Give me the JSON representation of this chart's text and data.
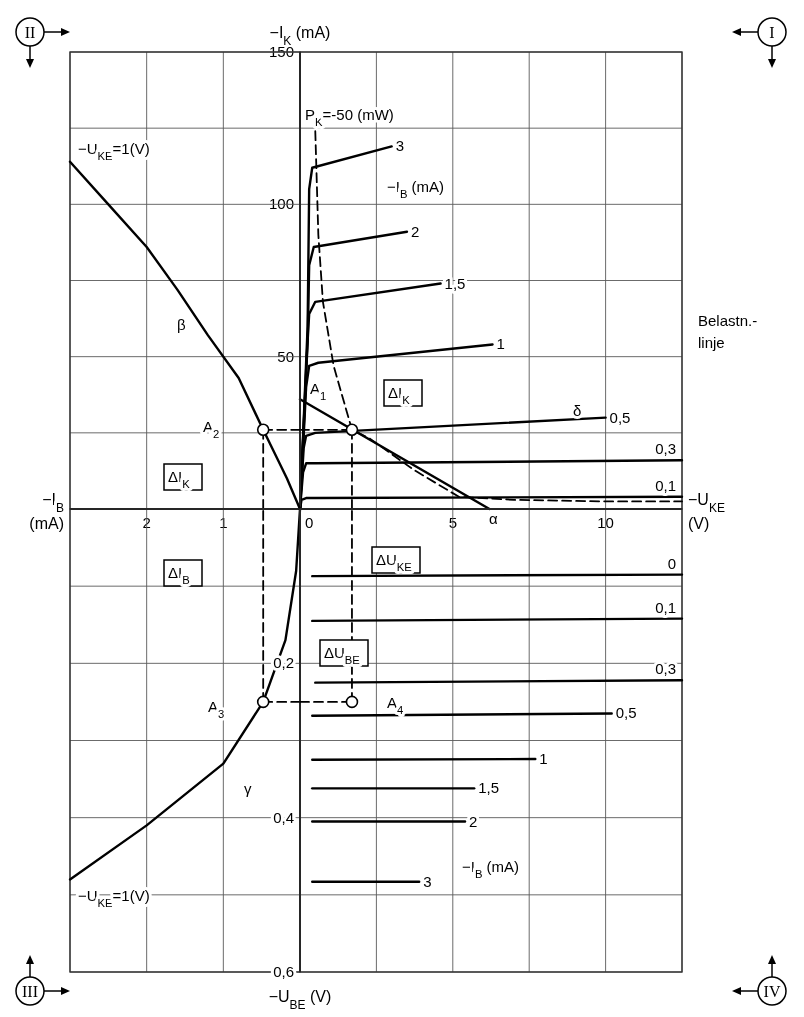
{
  "chart_data": [
    {
      "type": "line",
      "xlabel": "−U$_{KE}$ (V)",
      "ylabel": "−I$_{K}$ (mA)",
      "xlim": [
        0,
        12.5
      ],
      "ylim": [
        0,
        150
      ],
      "xticks": [
        0,
        {
          "value": 2.5,
          "label": null
        },
        5,
        {
          "value": 7.5,
          "label": null
        },
        10,
        {
          "value": 12.5,
          "label": null
        }
      ],
      "yticks": [
        {
          "value": 25,
          "label": null
        },
        50,
        {
          "value": 75,
          "label": null
        },
        100,
        {
          "value": 125,
          "label": null
        },
        150
      ],
      "grid": true,
      "series": [
        {
          "name": "3",
          "color": "#000000",
          "x": [
            0,
            0.25,
            0.3,
            0.4,
            3
          ],
          "values": [
            0,
            60,
            105,
            112,
            119
          ]
        },
        {
          "name": "2",
          "color": "#000000",
          "x": [
            0,
            0.25,
            0.3,
            0.45,
            3.5
          ],
          "values": [
            0,
            55,
            80,
            86,
            91
          ]
        },
        {
          "name": "1,5",
          "color": "#000000",
          "x": [
            0,
            0.22,
            0.3,
            0.5,
            4.6
          ],
          "values": [
            0,
            50,
            64,
            68,
            74
          ]
        },
        {
          "name": "1",
          "color": "#000000",
          "x": [
            0,
            0.2,
            0.3,
            0.6,
            6.3
          ],
          "values": [
            0,
            40,
            47,
            48,
            54
          ]
        },
        {
          "name": "0,5",
          "color": "#000000",
          "x": [
            0,
            0.12,
            0.2,
            0.5,
            10
          ],
          "values": [
            0,
            20,
            24,
            25,
            30
          ]
        },
        {
          "name": "0,3",
          "color": "#000000",
          "x": [
            0,
            0.1,
            0.2,
            0.5,
            12.5
          ],
          "values": [
            0,
            12,
            15,
            15,
            16
          ]
        },
        {
          "name": "0,1",
          "color": "#000000",
          "x": [
            0,
            0.05,
            0.2,
            0.5,
            12.5
          ],
          "values": [
            0,
            3,
            3.6,
            3.6,
            4
          ]
        },
        {
          "color": "#000000",
          "x": [
            0,
            6.2
          ],
          "values": [
            36,
            0
          ]
        },
        {
          "color": "#000000",
          "line_style": "dashed",
          "x": [
            0.5,
            0.6,
            0.75,
            1.1,
            1.7,
            2.3,
            3.7,
            5.2,
            7,
            10,
            12.5
          ],
          "values": [
            124,
            90,
            68,
            47,
            26,
            23,
            13,
            4,
            3,
            2.5,
            2.5
          ]
        },
        {
          "color": "#000000",
          "line_style": "dashed",
          "x": [
            0,
            1.7
          ],
          "values": [
            26,
            26
          ]
        },
        {
          "color": "#000000",
          "line_style": "dashed",
          "x": [
            1.7,
            1.7
          ],
          "values": [
            26,
            0
          ]
        },
        {
          "type": "scatter",
          "marker": "circle",
          "color": "#000000",
          "x": [
            1.7
          ],
          "values": [
            26
          ]
        }
      ],
      "annotations": [
        "I",
        "P$_{K}$=-50 (mW)",
        "−I$_{B}$ (mA)",
        "Belastn.-linje",
        "A$_{1}$",
        "ΔI$_{K}$",
        "δ",
        "α"
      ]
    },
    {
      "type": "line",
      "xlabel": "−I$_{B}$ (mA)",
      "xlim": [
        3,
        0
      ],
      "ylim": [
        0,
        150
      ],
      "xticks": [
        {
          "value": 3,
          "label": null
        },
        2,
        1
      ],
      "yticks": [
        {
          "value": 25,
          "label": null
        },
        {
          "value": 50,
          "label": null
        },
        {
          "value": 75,
          "label": null
        },
        {
          "value": 100,
          "label": null
        },
        {
          "value": 125,
          "label": null
        },
        {
          "value": 150,
          "label": null
        }
      ],
      "grid": true,
      "tick_labels": "x",
      "series": [
        {
          "name": "−U$_{KE}$=1(V)",
          "color": "#000000",
          "x": [
            0,
            0.17,
            0.48,
            0.8,
            1.2,
            1.6,
            2,
            2.5,
            3
          ],
          "values": [
            0,
            10,
            26,
            43,
            57,
            72,
            86,
            100,
            114
          ]
        },
        {
          "color": "#000000",
          "line_style": "dashed",
          "x": [
            0.48,
            0
          ],
          "values": [
            26,
            26
          ]
        },
        {
          "color": "#000000",
          "line_style": "dashed",
          "x": [
            0.48,
            0.48
          ],
          "values": [
            26,
            0
          ]
        },
        {
          "type": "scatter",
          "marker": "circle",
          "color": "#000000",
          "x": [
            0.48
          ],
          "values": [
            26
          ]
        }
      ],
      "annotations": [
        "II",
        "A$_{2}$",
        "ΔI$_{K}$",
        "β"
      ]
    },
    {
      "type": "line",
      "ylabel": "−U$_{BE}$ (V)",
      "xlim": [
        3,
        0
      ],
      "ylim": [
        0.6,
        0
      ],
      "xticks": [
        {
          "value": 3,
          "label": null
        },
        {
          "value": 2,
          "label": null
        },
        {
          "value": 1,
          "label": null
        }
      ],
      "yticks": [
        {
          "value": 0.1,
          "label": null
        },
        {
          "value": 0.2,
          "label": "0,2"
        },
        {
          "value": 0.3,
          "label": null
        },
        {
          "value": 0.4,
          "label": "0,4"
        },
        {
          "value": 0.5,
          "label": null
        },
        {
          "value": 0.6,
          "label": "0,6"
        }
      ],
      "grid": true,
      "tick_labels": "y",
      "series": [
        {
          "name": "−U$_{KE}$=1(V)",
          "color": "#000000",
          "x": [
            0,
            0.05,
            0.19,
            0.48,
            1,
            2,
            3
          ],
          "values": [
            0,
            0.08,
            0.17,
            0.25,
            0.33,
            0.41,
            0.48
          ]
        },
        {
          "color": "#000000",
          "line_style": "dashed",
          "x": [
            0.48,
            0
          ],
          "values": [
            0.25,
            0.25
          ]
        },
        {
          "color": "#000000",
          "line_style": "dashed",
          "x": [
            0.48,
            0.48
          ],
          "values": [
            0.25,
            0
          ]
        },
        {
          "type": "scatter",
          "marker": "circle",
          "color": "#000000",
          "x": [
            0.48
          ],
          "values": [
            0.25
          ]
        }
      ],
      "annotations": [
        "III",
        "ΔI$_{B}$",
        "A$_{3}$",
        "γ"
      ]
    },
    {
      "type": "line",
      "xlim": [
        0,
        12.5
      ],
      "ylim": [
        0.6,
        0
      ],
      "xticks": [
        {
          "value": 2.5,
          "label": null
        },
        {
          "value": 5,
          "label": null
        },
        {
          "value": 7.5,
          "label": null
        },
        {
          "value": 10,
          "label": null
        },
        {
          "value": 12.5,
          "label": null
        }
      ],
      "yticks": [
        {
          "value": 0.1,
          "label": null
        },
        {
          "value": 0.2,
          "label": null
        },
        {
          "value": 0.3,
          "label": null
        },
        {
          "value": 0.4,
          "label": null
        },
        {
          "value": 0.5,
          "label": null
        },
        {
          "value": 0.6,
          "label": null
        }
      ],
      "grid": true,
      "tick_labels": false,
      "series": [
        {
          "name": "0",
          "color": "#000000",
          "x": [
            0.4,
            12.5
          ],
          "values": [
            0.087,
            0.085
          ]
        },
        {
          "name": "0,1",
          "color": "#000000",
          "x": [
            0.4,
            12.5
          ],
          "values": [
            0.145,
            0.142
          ]
        },
        {
          "name": "0,3",
          "color": "#000000",
          "x": [
            0.5,
            12.5
          ],
          "values": [
            0.225,
            0.222
          ]
        },
        {
          "name": "0,5",
          "color": "#000000",
          "x": [
            0.4,
            10.2
          ],
          "values": [
            0.268,
            0.265
          ]
        },
        {
          "name": "1",
          "color": "#000000",
          "x": [
            0.4,
            7.7
          ],
          "values": [
            0.325,
            0.324
          ]
        },
        {
          "name": "1,5",
          "color": "#000000",
          "x": [
            0.4,
            5.7
          ],
          "values": [
            0.362,
            0.362
          ]
        },
        {
          "name": "2",
          "color": "#000000",
          "x": [
            0.4,
            5.4
          ],
          "values": [
            0.405,
            0.405
          ]
        },
        {
          "name": "3",
          "color": "#000000",
          "x": [
            0.4,
            3.9
          ],
          "values": [
            0.483,
            0.483
          ]
        },
        {
          "color": "#000000",
          "line_style": "dashed",
          "x": [
            0,
            1.7
          ],
          "values": [
            0.25,
            0.25
          ]
        },
        {
          "color": "#000000",
          "line_style": "dashed",
          "x": [
            1.7,
            1.7
          ],
          "values": [
            0.25,
            0
          ]
        },
        {
          "type": "scatter",
          "marker": "circle",
          "color": "#000000",
          "x": [
            1.7
          ],
          "values": [
            0.25
          ]
        }
      ],
      "annotations": [
        "IV",
        "ΔU$_{KE}$",
        "ΔU$_{BE}$",
        "A$_{4}$",
        "−I$_{B}$ (mA)"
      ]
    }
  ]
}
